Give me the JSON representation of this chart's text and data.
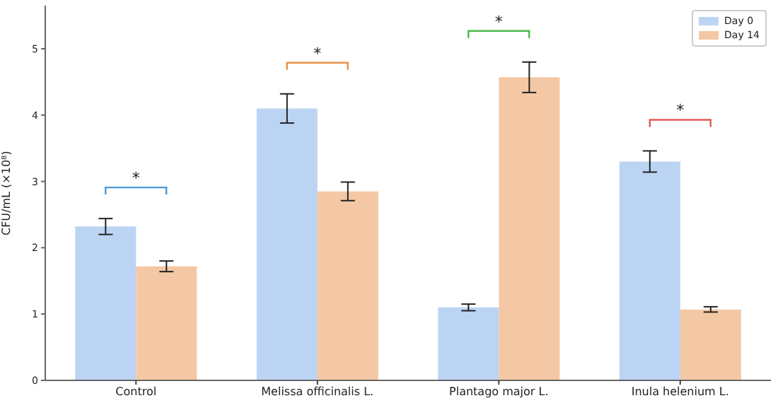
{
  "chart_data": {
    "type": "bar",
    "ylabel": "CFU/mL (×10⁸)",
    "categories": [
      "Control",
      "Melissa officinalis L.",
      "Plantago major L.",
      "Inula helenium L."
    ],
    "series": [
      {
        "name": "Day 0",
        "color": "#bcd4f4",
        "values": [
          2.32,
          4.1,
          1.1,
          3.3
        ],
        "errors": [
          0.12,
          0.22,
          0.05,
          0.16
        ]
      },
      {
        "name": "Day 14",
        "color": "#f4c8a4",
        "values": [
          1.72,
          2.85,
          4.57,
          1.07
        ],
        "errors": [
          0.08,
          0.14,
          0.23,
          0.04
        ]
      }
    ],
    "annotations": [
      "*",
      "*",
      "*",
      "*"
    ],
    "ylim": [
      0,
      5.65
    ],
    "yticks": [
      0,
      1,
      2,
      3,
      4,
      5
    ],
    "grid": false,
    "legend": "top right"
  }
}
